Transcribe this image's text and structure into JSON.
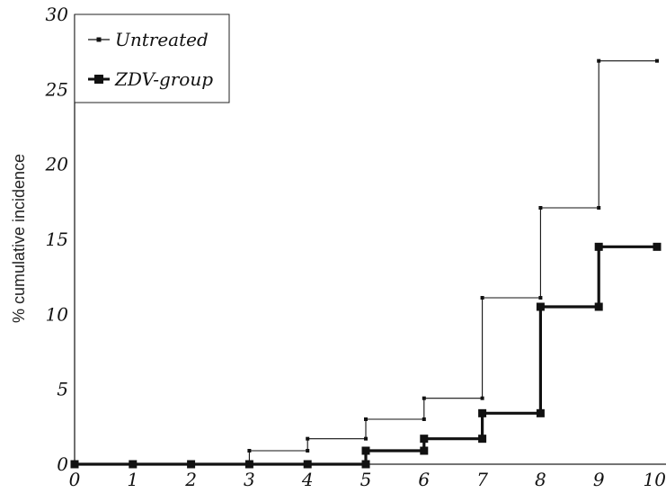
{
  "chart_data": {
    "type": "line",
    "step": true,
    "title": "",
    "xlabel": "",
    "ylabel": "% cumulative incidence",
    "xlim": [
      0,
      10
    ],
    "ylim": [
      0,
      30
    ],
    "x_ticks": [
      "0",
      "1",
      "2",
      "3",
      "4",
      "5",
      "6",
      "7",
      "8",
      "9",
      "10"
    ],
    "y_ticks": [
      "0",
      "5",
      "10",
      "15",
      "20",
      "25",
      "30"
    ],
    "grid": false,
    "legend_position": "top-left",
    "series": [
      {
        "name": "Untreated",
        "color": "#111111",
        "marker": "small-square",
        "x": [
          0,
          3,
          4,
          5,
          6,
          7,
          8,
          9,
          10
        ],
        "y": [
          0,
          0.9,
          1.7,
          3.0,
          4.4,
          11.1,
          17.1,
          26.9,
          26.9
        ]
      },
      {
        "name": "ZDV-group",
        "color": "#111111",
        "marker": "large-square",
        "x": [
          0,
          1,
          2,
          3,
          4,
          5,
          6,
          7,
          8,
          9,
          10
        ],
        "y": [
          0,
          0,
          0,
          0,
          0,
          0.9,
          1.7,
          3.4,
          10.5,
          14.5,
          14.5
        ]
      }
    ]
  }
}
